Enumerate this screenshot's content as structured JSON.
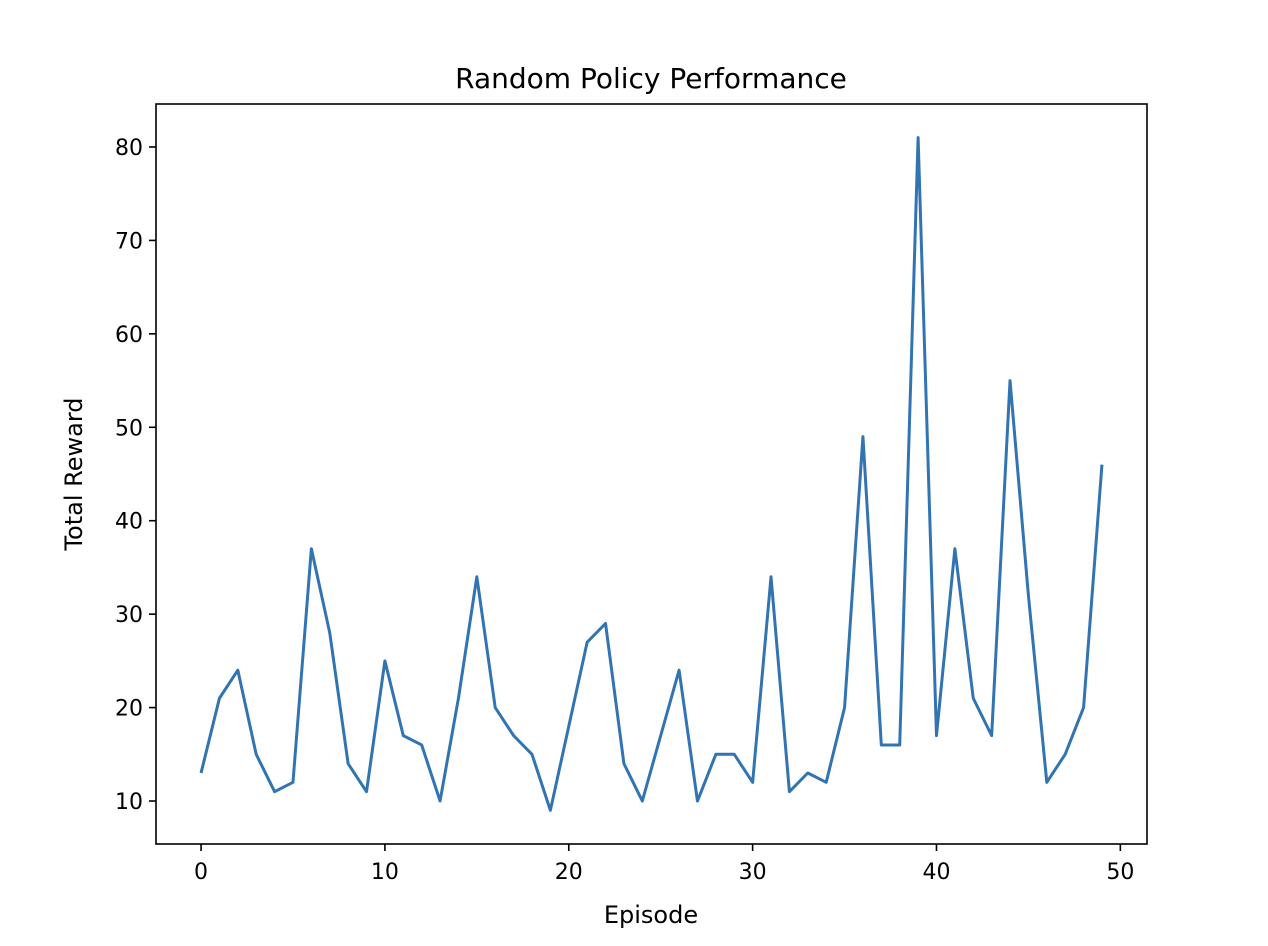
{
  "chart_data": {
    "type": "line",
    "title": "Random Policy Performance",
    "xlabel": "Episode",
    "ylabel": "Total Reward",
    "xlim": [
      -2.45,
      51.45
    ],
    "ylim": [
      5.4,
      84.6
    ],
    "xticks": [
      0,
      10,
      20,
      30,
      40,
      50
    ],
    "yticks": [
      10,
      20,
      30,
      40,
      50,
      60,
      70,
      80
    ],
    "grid": false,
    "legend": "none",
    "series": [
      {
        "color": "#3274b2",
        "x": [
          0,
          1,
          2,
          3,
          4,
          5,
          6,
          7,
          8,
          9,
          10,
          11,
          12,
          13,
          14,
          15,
          16,
          17,
          18,
          19,
          20,
          21,
          22,
          23,
          24,
          25,
          26,
          27,
          28,
          29,
          30,
          31,
          32,
          33,
          34,
          35,
          36,
          37,
          38,
          39,
          40,
          41,
          42,
          43,
          44,
          45,
          46,
          47,
          48,
          49
        ],
        "values": [
          13,
          21,
          24,
          15,
          11,
          12,
          37,
          28,
          14,
          11,
          25,
          17,
          16,
          10,
          21,
          34,
          20,
          17,
          15,
          9,
          18,
          27,
          29,
          14,
          10,
          17,
          24,
          10,
          15,
          15,
          12,
          34,
          11,
          13,
          12,
          20,
          49,
          16,
          16,
          81,
          17,
          37,
          21,
          17,
          55,
          32,
          12,
          15,
          20,
          46
        ]
      }
    ]
  }
}
